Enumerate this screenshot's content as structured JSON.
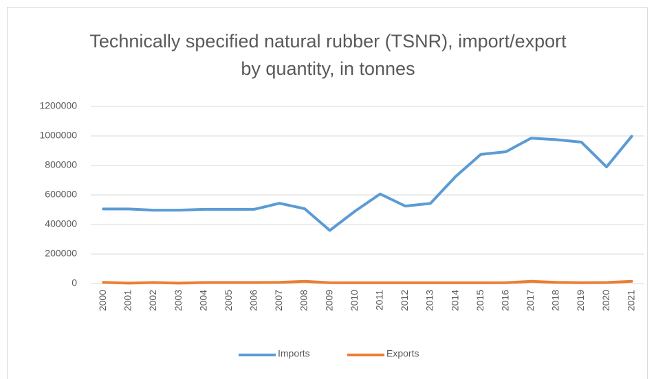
{
  "chart_data": {
    "type": "line",
    "title": "Technically specified natural rubber (TSNR), import/export by quantity, in tonnes",
    "categories": [
      "2000",
      "2001",
      "2002",
      "2003",
      "2004",
      "2005",
      "2006",
      "2007",
      "2008",
      "2009",
      "2010",
      "2011",
      "2012",
      "2013",
      "2014",
      "2015",
      "2016",
      "2017",
      "2018",
      "2019",
      "2020",
      "2021"
    ],
    "series": [
      {
        "name": "Imports",
        "color": "#5b9bd5",
        "values": [
          505000,
          505000,
          497000,
          497000,
          503000,
          503000,
          503000,
          544000,
          507000,
          360000,
          490000,
          607000,
          525000,
          543000,
          725000,
          875000,
          893000,
          985000,
          975000,
          958000,
          790000,
          998000
        ]
      },
      {
        "name": "Exports",
        "color": "#ed7d31",
        "values": [
          8000,
          3000,
          7000,
          3000,
          7000,
          7000,
          7000,
          8000,
          15000,
          6000,
          5000,
          5000,
          5000,
          5000,
          5000,
          5000,
          6000,
          15000,
          8000,
          6000,
          7000,
          15000
        ]
      }
    ],
    "ylim": [
      0,
      1200000
    ],
    "yticks": [
      0,
      200000,
      400000,
      600000,
      800000,
      1000000,
      1200000
    ],
    "grid": true,
    "legend": "bottom"
  }
}
